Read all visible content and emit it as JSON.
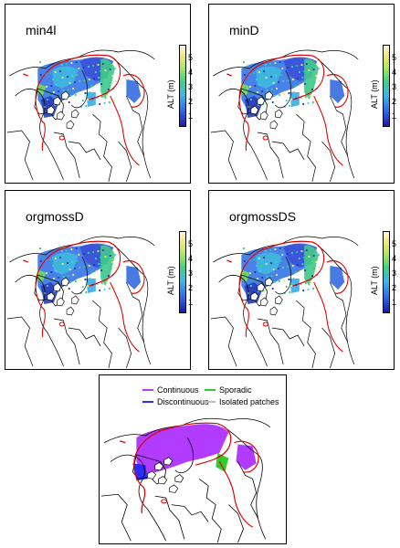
{
  "panels": [
    {
      "title": "min4l",
      "colorbar_label": "ALT (m)",
      "ticks": [
        "5",
        "4",
        "3",
        "2",
        "1"
      ]
    },
    {
      "title": "minD",
      "colorbar_label": "ALT (m)",
      "ticks": [
        "5",
        "4",
        "3",
        "2",
        "1"
      ]
    },
    {
      "title": "orgmossD",
      "colorbar_label": "ALT (m)",
      "ticks": [
        "5",
        "4",
        "3",
        "2",
        "1"
      ]
    },
    {
      "title": "orgmossDS",
      "colorbar_label": "ALT (m)",
      "ticks": [
        "5",
        "4",
        "3",
        "2",
        "1"
      ]
    }
  ],
  "legend": {
    "items": [
      {
        "label": "Continuous",
        "color": "#b13cff"
      },
      {
        "label": "Sporadic",
        "color": "#2ecc2e"
      },
      {
        "label": "Discontinuous",
        "color": "#2c2cff"
      },
      {
        "label": "Isolated patches",
        "color": "#bdbdbd"
      }
    ]
  },
  "colors": {
    "boundary": "#e00000",
    "coast": "#000000"
  }
}
